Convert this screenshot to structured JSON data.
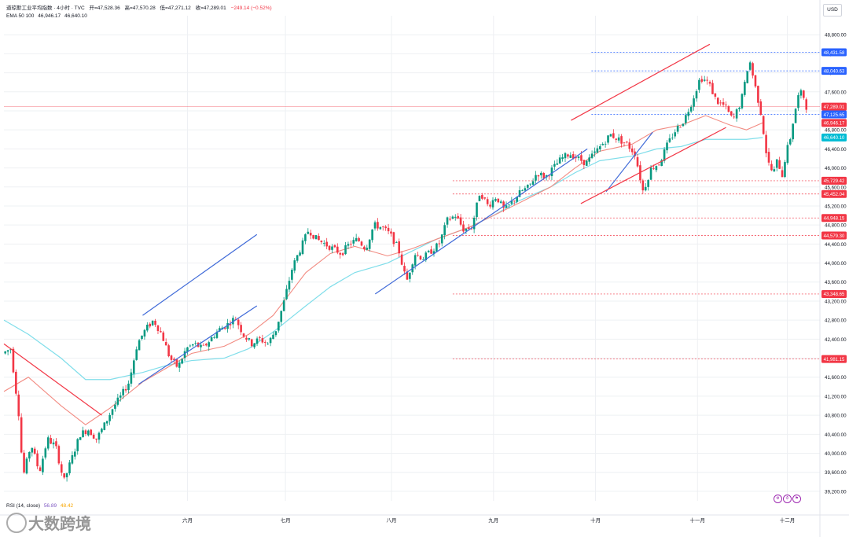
{
  "header": {
    "symbol_line": "道琼斯工业平均指数 · 4小时 · TVC",
    "open": "开=47,528.36",
    "high": "高=47,570.28",
    "low": "低=47,271.12",
    "close": "收=47,289.01",
    "change": "−249.14 (−0.52%)",
    "ema_label": "EMA 50 100",
    "ema50_value": "46,946.17",
    "ema100_value": "46,640.10",
    "rsi_label": "RSI (14, close)",
    "rsi_value1": "56.89",
    "rsi_value2": "48.42",
    "currency": "USD"
  },
  "watermark": "大数跨境",
  "colors": {
    "up": "#089981",
    "down": "#f23645",
    "ema50": "#f28b82",
    "ema100": "#80deea",
    "trend_blue": "#3f6ad8",
    "trend_red": "#f23645",
    "hline": "#f23645",
    "hline_blue": "#2962ff",
    "grid": "#eef0f3",
    "axis_text": "#131722"
  },
  "chart_data": {
    "type": "candlestick",
    "title": "道琼斯工业平均指数 · 4小时 · TVC",
    "ylim": [
      39000,
      49200
    ],
    "y_ticks": [
      39200,
      39600,
      40000,
      40400,
      40800,
      41200,
      41600,
      42000,
      42400,
      42800,
      43200,
      43600,
      44000,
      44400,
      44800,
      45200,
      45600,
      46000,
      46400,
      46800,
      47200,
      47600,
      48000,
      48400,
      48800
    ],
    "x_ticks": [
      "六月",
      "七月",
      "八月",
      "九月",
      "十月",
      "十一月",
      "十二月"
    ],
    "price_levels": [
      {
        "value": 48431.58,
        "label": "48,431.58",
        "style": "blue"
      },
      {
        "value": 48040.63,
        "label": "48,040.63",
        "style": "blue"
      },
      {
        "value": 47289.01,
        "label": "47,289.01",
        "style": "current"
      },
      {
        "value": 47125.65,
        "label": "47,125.65",
        "style": "blue"
      },
      {
        "value": 46946.17,
        "label": "46,946.17",
        "style": "ema50"
      },
      {
        "value": 46640.1,
        "label": "46,640.10",
        "style": "ema100"
      },
      {
        "value": 45729.42,
        "label": "45,729.42",
        "style": "red"
      },
      {
        "value": 45452.04,
        "label": "45,452.04",
        "style": "red"
      },
      {
        "value": 44948.15,
        "label": "44,948.15",
        "style": "red"
      },
      {
        "value": 44579.3,
        "label": "44,579.30",
        "style": "red"
      },
      {
        "value": 43348.65,
        "label": "43,348.65",
        "style": "red"
      },
      {
        "value": 41981.15,
        "label": "41,981.15",
        "style": "red"
      }
    ],
    "ema50": [
      [
        0,
        41300
      ],
      [
        0.03,
        41600
      ],
      [
        0.07,
        41000
      ],
      [
        0.1,
        40600
      ],
      [
        0.13,
        40950
      ],
      [
        0.17,
        41500
      ],
      [
        0.2,
        41800
      ],
      [
        0.23,
        42100
      ],
      [
        0.27,
        42250
      ],
      [
        0.3,
        42500
      ],
      [
        0.33,
        42900
      ],
      [
        0.37,
        43800
      ],
      [
        0.4,
        44200
      ],
      [
        0.43,
        44350
      ],
      [
        0.47,
        44150
      ],
      [
        0.5,
        44300
      ],
      [
        0.53,
        44500
      ],
      [
        0.57,
        44750
      ],
      [
        0.6,
        45000
      ],
      [
        0.63,
        45250
      ],
      [
        0.67,
        45600
      ],
      [
        0.7,
        46000
      ],
      [
        0.73,
        46350
      ],
      [
        0.77,
        46500
      ],
      [
        0.8,
        46800
      ],
      [
        0.83,
        46900
      ],
      [
        0.86,
        47100
      ],
      [
        0.89,
        46900
      ],
      [
        0.91,
        46800
      ],
      [
        0.93,
        46950
      ]
    ],
    "ema100": [
      [
        0,
        42800
      ],
      [
        0.03,
        42500
      ],
      [
        0.07,
        42000
      ],
      [
        0.1,
        41550
      ],
      [
        0.13,
        41550
      ],
      [
        0.17,
        41700
      ],
      [
        0.2,
        41850
      ],
      [
        0.23,
        41950
      ],
      [
        0.27,
        42000
      ],
      [
        0.3,
        42200
      ],
      [
        0.33,
        42550
      ],
      [
        0.37,
        43100
      ],
      [
        0.4,
        43500
      ],
      [
        0.43,
        43800
      ],
      [
        0.47,
        44000
      ],
      [
        0.5,
        44250
      ],
      [
        0.53,
        44500
      ],
      [
        0.57,
        44750
      ],
      [
        0.6,
        45000
      ],
      [
        0.63,
        45300
      ],
      [
        0.67,
        45600
      ],
      [
        0.7,
        45900
      ],
      [
        0.73,
        46150
      ],
      [
        0.77,
        46250
      ],
      [
        0.8,
        46400
      ],
      [
        0.83,
        46450
      ],
      [
        0.86,
        46600
      ],
      [
        0.89,
        46600
      ],
      [
        0.91,
        46600
      ],
      [
        0.93,
        46640
      ]
    ],
    "price_path": [
      [
        0,
        42100
      ],
      [
        0.01,
        42200
      ],
      [
        0.02,
        40800
      ],
      [
        0.025,
        39500
      ],
      [
        0.035,
        40200
      ],
      [
        0.045,
        39600
      ],
      [
        0.055,
        40300
      ],
      [
        0.065,
        40150
      ],
      [
        0.075,
        39400
      ],
      [
        0.085,
        39900
      ],
      [
        0.095,
        40400
      ],
      [
        0.105,
        40500
      ],
      [
        0.115,
        40300
      ],
      [
        0.125,
        40600
      ],
      [
        0.135,
        40950
      ],
      [
        0.145,
        41200
      ],
      [
        0.155,
        41500
      ],
      [
        0.165,
        42300
      ],
      [
        0.175,
        42600
      ],
      [
        0.185,
        42800
      ],
      [
        0.195,
        42500
      ],
      [
        0.205,
        42000
      ],
      [
        0.215,
        41800
      ],
      [
        0.225,
        42200
      ],
      [
        0.235,
        42300
      ],
      [
        0.245,
        42200
      ],
      [
        0.255,
        42400
      ],
      [
        0.265,
        42600
      ],
      [
        0.275,
        42700
      ],
      [
        0.285,
        42850
      ],
      [
        0.295,
        42500
      ],
      [
        0.305,
        42300
      ],
      [
        0.315,
        42400
      ],
      [
        0.325,
        42300
      ],
      [
        0.335,
        42600
      ],
      [
        0.345,
        43200
      ],
      [
        0.355,
        43900
      ],
      [
        0.365,
        44300
      ],
      [
        0.375,
        44700
      ],
      [
        0.385,
        44500
      ],
      [
        0.395,
        44400
      ],
      [
        0.405,
        44300
      ],
      [
        0.415,
        44200
      ],
      [
        0.425,
        44400
      ],
      [
        0.435,
        44500
      ],
      [
        0.445,
        44300
      ],
      [
        0.455,
        44800
      ],
      [
        0.465,
        44750
      ],
      [
        0.475,
        44600
      ],
      [
        0.485,
        44300
      ],
      [
        0.495,
        43600
      ],
      [
        0.505,
        44200
      ],
      [
        0.515,
        44100
      ],
      [
        0.525,
        44250
      ],
      [
        0.535,
        44400
      ],
      [
        0.545,
        44900
      ],
      [
        0.555,
        45000
      ],
      [
        0.565,
        44700
      ],
      [
        0.575,
        44750
      ],
      [
        0.585,
        45500
      ],
      [
        0.595,
        45200
      ],
      [
        0.605,
        45400
      ],
      [
        0.615,
        45100
      ],
      [
        0.625,
        45300
      ],
      [
        0.635,
        45500
      ],
      [
        0.645,
        45600
      ],
      [
        0.655,
        45900
      ],
      [
        0.665,
        45800
      ],
      [
        0.675,
        46000
      ],
      [
        0.685,
        46200
      ],
      [
        0.695,
        46300
      ],
      [
        0.705,
        46200
      ],
      [
        0.715,
        46100
      ],
      [
        0.725,
        46300
      ],
      [
        0.735,
        46500
      ],
      [
        0.745,
        46700
      ],
      [
        0.755,
        46600
      ],
      [
        0.765,
        46500
      ],
      [
        0.775,
        46300
      ],
      [
        0.785,
        45500
      ],
      [
        0.795,
        46000
      ],
      [
        0.805,
        46100
      ],
      [
        0.815,
        46500
      ],
      [
        0.825,
        46800
      ],
      [
        0.835,
        47000
      ],
      [
        0.845,
        47400
      ],
      [
        0.855,
        47900
      ],
      [
        0.865,
        47800
      ],
      [
        0.875,
        47400
      ],
      [
        0.885,
        47300
      ],
      [
        0.895,
        47000
      ],
      [
        0.905,
        47400
      ],
      [
        0.91,
        47800
      ],
      [
        0.915,
        48300
      ],
      [
        0.92,
        47900
      ],
      [
        0.925,
        47500
      ],
      [
        0.93,
        47100
      ],
      [
        0.935,
        46400
      ],
      [
        0.94,
        46000
      ],
      [
        0.945,
        45900
      ],
      [
        0.95,
        46200
      ],
      [
        0.955,
        45800
      ],
      [
        0.96,
        46300
      ],
      [
        0.965,
        46600
      ],
      [
        0.97,
        47100
      ],
      [
        0.975,
        47500
      ],
      [
        0.98,
        47600
      ],
      [
        0.985,
        47289
      ]
    ],
    "trendlines": [
      {
        "color": "blue",
        "from": [
          0.165,
          41450
        ],
        "to": [
          0.31,
          43100
        ]
      },
      {
        "color": "blue",
        "from": [
          0.17,
          42900
        ],
        "to": [
          0.31,
          44600
        ]
      },
      {
        "color": "blue",
        "from": [
          0.455,
          43350
        ],
        "to": [
          0.715,
          46400
        ]
      },
      {
        "color": "blue",
        "from": [
          0.738,
          45500
        ],
        "to": [
          0.795,
          46750
        ]
      },
      {
        "color": "red",
        "from": [
          0.0,
          42300
        ],
        "to": [
          0.12,
          40800
        ]
      },
      {
        "color": "red",
        "from": [
          0.695,
          47000
        ],
        "to": [
          0.865,
          48600
        ]
      },
      {
        "color": "red",
        "from": [
          0.707,
          45250
        ],
        "to": [
          0.885,
          46850
        ]
      }
    ]
  }
}
